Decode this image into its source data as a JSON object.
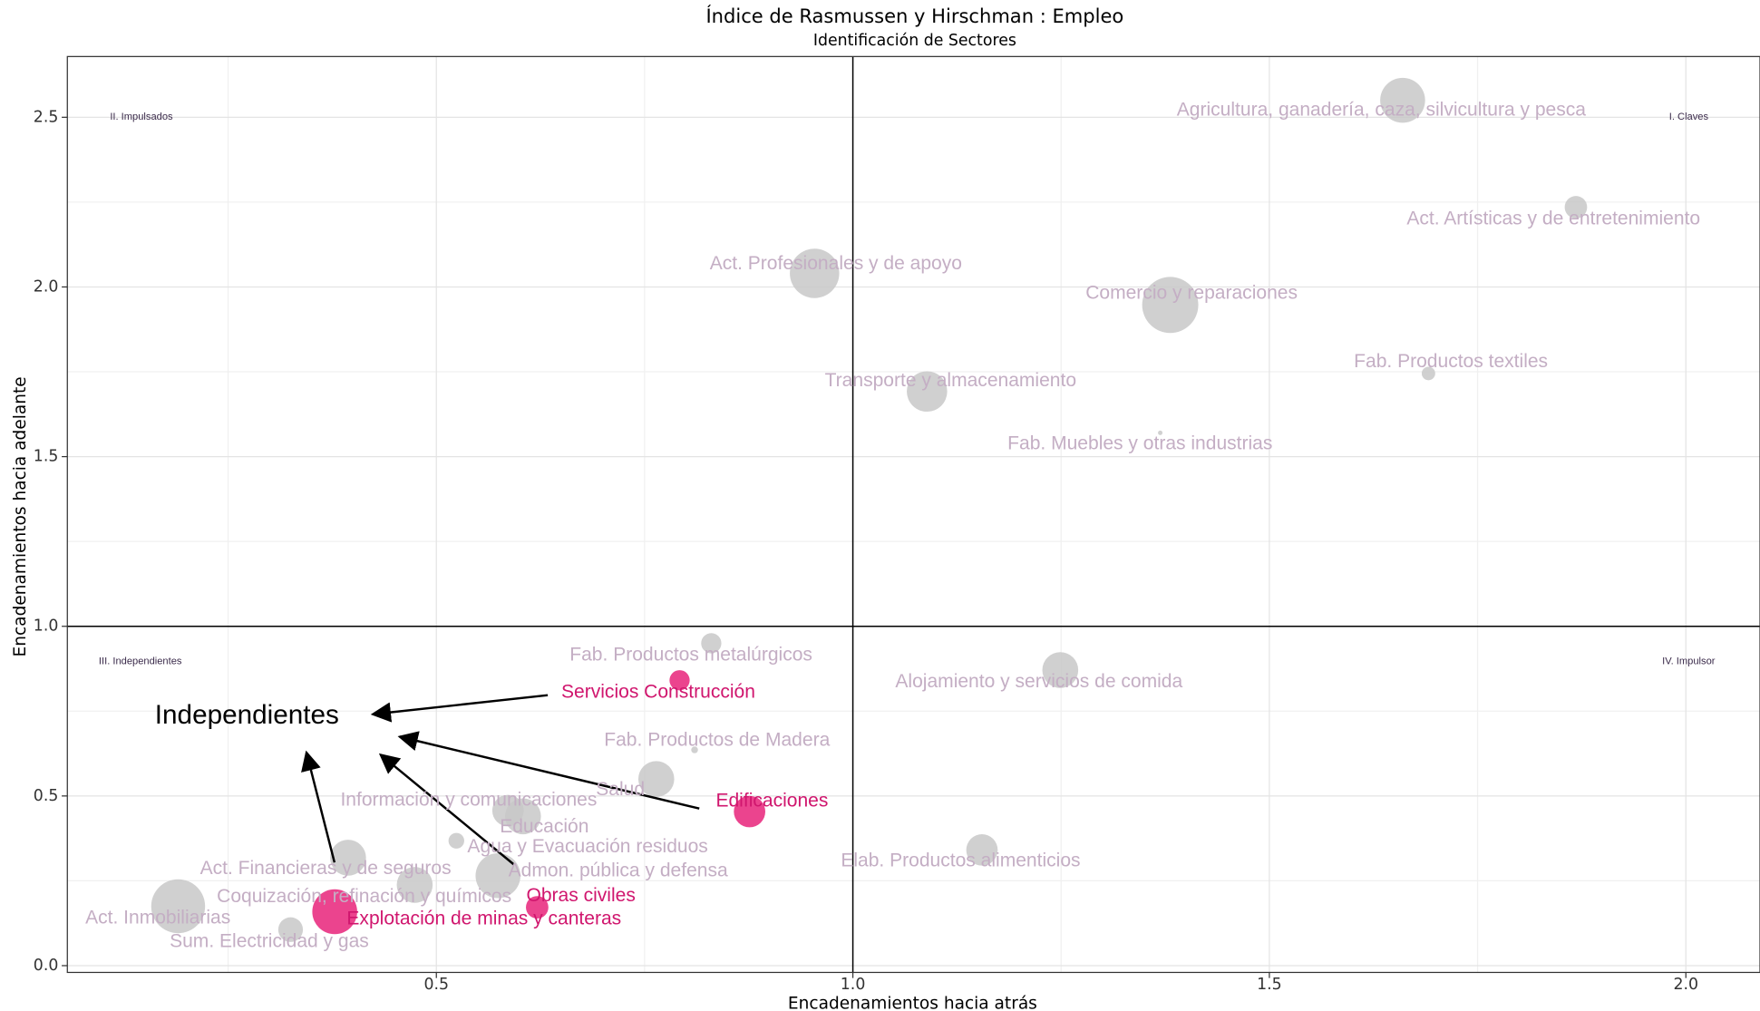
{
  "chart_data": {
    "type": "scatter",
    "title": "Índice de Rasmussen y Hirschman : Empleo",
    "subtitle": "Identificación de Sectores",
    "xlabel": "Encadenamientos hacia atrás",
    "ylabel": "Encadenamientos hacia adelante",
    "xlim": [
      0.057,
      2.089
    ],
    "ylim": [
      -0.02,
      2.679
    ],
    "xticks": [
      0.5,
      {
        "value": 1.0,
        "label": "1.0"
      },
      1.5,
      {
        "value": 2.0,
        "label": "2.0"
      }
    ],
    "yticks": [
      {
        "value": 0.0,
        "label": "0.0"
      },
      0.5,
      {
        "value": 1.0,
        "label": "1.0"
      },
      1.5,
      {
        "value": 2.0,
        "label": "2.0"
      },
      2.5
    ],
    "grid": true,
    "vline": 1,
    "hline": 1,
    "quadrants": [
      "II. Impulsados",
      "I. Claves",
      "III. Independientes",
      "IV. Impulsor"
    ],
    "annotation": "Independientes",
    "series": [
      {
        "color": "#c8c8c8",
        "label_color": "#c4aec4",
        "labels": [
          "Agricultura, ganadería, caza, silvicultura y pesca",
          "Act. Artísticas y de entretenimiento",
          "Act. Profesionales y de apoyo",
          "Comercio y reparaciones",
          "Fab. Productos textiles",
          "Transporte y almacenamiento",
          "Fab. Muebles y otras industrias",
          "Fab. Productos metalúrgicos",
          "Alojamiento y servicios de comida",
          "Fab. Productos de Madera",
          "Salud",
          "Información y comunicaciones",
          "Educación",
          "Agua y Evacuación residuos",
          "Admon. pública y defensa",
          "Act. Financieras y de seguros",
          "Coquización, refinación y químicos",
          "Act. Inmobiliarias",
          "Sum. Electricidad y gas",
          "Elab. Productos alimenticios"
        ],
        "x": [
          1.66,
          1.868,
          0.954,
          1.381,
          1.691,
          1.089,
          1.369,
          0.83,
          1.249,
          0.81,
          0.764,
          0.586,
          0.604,
          0.524,
          0.574,
          0.394,
          0.474,
          0.19,
          0.325,
          1.155
        ],
        "y": [
          2.55,
          2.235,
          2.04,
          1.947,
          1.745,
          1.692,
          1.57,
          0.95,
          0.871,
          0.636,
          0.55,
          0.457,
          0.44,
          0.368,
          0.265,
          0.318,
          0.238,
          0.175,
          0.106,
          0.341
        ],
        "sizes": [
          20,
          10,
          22,
          25,
          6,
          18,
          2,
          9,
          16,
          3,
          16,
          14,
          16,
          7,
          20,
          16,
          16,
          24,
          11,
          14
        ]
      },
      {
        "color": "#e8237a",
        "label_color": "#d0166e",
        "labels": [
          "Servicios Construcción",
          "Edificaciones",
          "Obras civiles",
          "Explotación de minas y canteras"
        ],
        "x": [
          0.792,
          0.876,
          0.621,
          0.378
        ],
        "y": [
          0.841,
          0.454,
          0.172,
          0.159
        ],
        "sizes": [
          9,
          14,
          10,
          20
        ]
      }
    ]
  }
}
